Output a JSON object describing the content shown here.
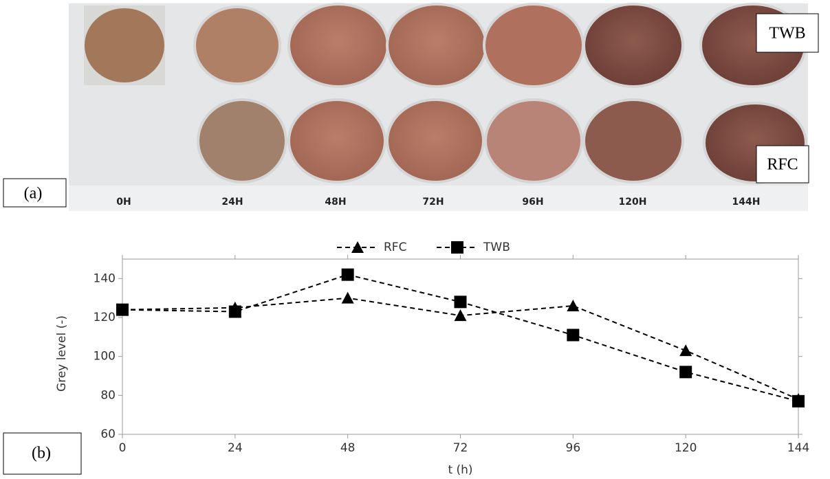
{
  "panel_a": {
    "label": "(a)",
    "row_labels": [
      "TWB",
      "RFC"
    ],
    "times": [
      "0H",
      "24H",
      "48H",
      "72H",
      "96H",
      "120H",
      "144H"
    ]
  },
  "chart_data": {
    "type": "line",
    "panel_label": "(b)",
    "x_label": "t (h)",
    "y_label": "Grey level (-)",
    "x": [
      0,
      24,
      48,
      72,
      96,
      120,
      144
    ],
    "series": [
      {
        "name": "RFC",
        "color": "#000000",
        "marker": "triangle",
        "values": [
          124,
          125,
          130,
          121,
          126,
          103,
          78
        ]
      },
      {
        "name": "TWB",
        "color": "#000000",
        "marker": "square",
        "values": [
          124,
          123,
          142,
          128,
          111,
          92,
          77
        ]
      }
    ],
    "xlim": [
      0,
      144
    ],
    "xticks": [
      0,
      24,
      48,
      72,
      96,
      120,
      144
    ],
    "ylim": [
      60,
      150
    ],
    "yticks": [
      60,
      80,
      100,
      120,
      140
    ],
    "legend": "top"
  }
}
